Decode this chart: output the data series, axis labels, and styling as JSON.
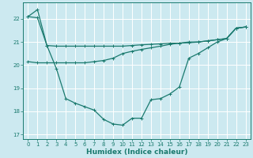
{
  "xlabel": "Humidex (Indice chaleur)",
  "ylabel": "",
  "background_color": "#cce9f0",
  "line_color": "#1a7a6e",
  "grid_color": "#ffffff",
  "xlim_min": -0.5,
  "xlim_max": 23.5,
  "ylim_min": 16.8,
  "ylim_max": 22.7,
  "yticks": [
    17,
    18,
    19,
    20,
    21,
    22
  ],
  "xticks": [
    0,
    1,
    2,
    3,
    4,
    5,
    6,
    7,
    8,
    9,
    10,
    11,
    12,
    13,
    14,
    15,
    16,
    17,
    18,
    19,
    20,
    21,
    22,
    23
  ],
  "line1_x": [
    0,
    1,
    2,
    3,
    4,
    5,
    6,
    7,
    8,
    9,
    10,
    11,
    12,
    13,
    14,
    15,
    16,
    17,
    18,
    19,
    20,
    21,
    22,
    23
  ],
  "line1_y": [
    22.1,
    22.4,
    20.85,
    19.85,
    18.55,
    18.35,
    18.2,
    18.05,
    17.65,
    17.45,
    17.4,
    17.7,
    17.7,
    18.5,
    18.55,
    18.75,
    19.05,
    20.3,
    20.5,
    20.75,
    21.0,
    21.15,
    21.6,
    21.65
  ],
  "line2_x": [
    0,
    1,
    2,
    3,
    4,
    5,
    6,
    7,
    8,
    9,
    10,
    11,
    12,
    13,
    14,
    15,
    16,
    17,
    18,
    19,
    20,
    21,
    22,
    23
  ],
  "line2_y": [
    22.1,
    22.05,
    20.85,
    20.82,
    20.82,
    20.82,
    20.82,
    20.82,
    20.82,
    20.82,
    20.82,
    20.85,
    20.88,
    20.9,
    20.92,
    20.95,
    20.95,
    20.97,
    21.0,
    21.05,
    21.1,
    21.15,
    21.6,
    21.65
  ],
  "line3_x": [
    0,
    1,
    2,
    3,
    4,
    5,
    6,
    7,
    8,
    9,
    10,
    11,
    12,
    13,
    14,
    15,
    16,
    17,
    18,
    19,
    20,
    21,
    22,
    23
  ],
  "line3_y": [
    20.15,
    20.1,
    20.1,
    20.1,
    20.1,
    20.1,
    20.1,
    20.15,
    20.2,
    20.3,
    20.5,
    20.6,
    20.68,
    20.75,
    20.82,
    20.9,
    20.95,
    21.0,
    21.0,
    21.05,
    21.1,
    21.15,
    21.6,
    21.65
  ],
  "xlabel_fontsize": 6.5,
  "tick_fontsize": 5.0,
  "linewidth": 0.9,
  "marker_size": 2.5
}
